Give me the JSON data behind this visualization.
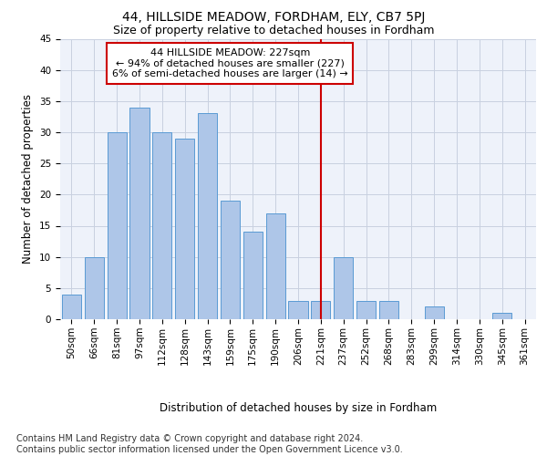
{
  "title": "44, HILLSIDE MEADOW, FORDHAM, ELY, CB7 5PJ",
  "subtitle": "Size of property relative to detached houses in Fordham",
  "xlabel": "Distribution of detached houses by size in Fordham",
  "ylabel": "Number of detached properties",
  "categories": [
    "50sqm",
    "66sqm",
    "81sqm",
    "97sqm",
    "112sqm",
    "128sqm",
    "143sqm",
    "159sqm",
    "175sqm",
    "190sqm",
    "206sqm",
    "221sqm",
    "237sqm",
    "252sqm",
    "268sqm",
    "283sqm",
    "299sqm",
    "314sqm",
    "330sqm",
    "345sqm",
    "361sqm"
  ],
  "values": [
    4,
    10,
    30,
    34,
    30,
    29,
    33,
    19,
    14,
    17,
    3,
    3,
    10,
    3,
    3,
    0,
    2,
    0,
    0,
    1,
    0
  ],
  "bar_color": "#aec6e8",
  "bar_edge_color": "#5a9bd4",
  "vline_x_index": 11,
  "vline_color": "#cc0000",
  "annotation_line1": "44 HILLSIDE MEADOW: 227sqm",
  "annotation_line2": "← 94% of detached houses are smaller (227)",
  "annotation_line3": "6% of semi-detached houses are larger (14) →",
  "annotation_box_color": "#cc0000",
  "ylim": [
    0,
    45
  ],
  "yticks": [
    0,
    5,
    10,
    15,
    20,
    25,
    30,
    35,
    40,
    45
  ],
  "footer_text": "Contains HM Land Registry data © Crown copyright and database right 2024.\nContains public sector information licensed under the Open Government Licence v3.0.",
  "bg_color": "#eef2fa",
  "grid_color": "#c8d0e0",
  "title_fontsize": 10,
  "subtitle_fontsize": 9,
  "axis_label_fontsize": 8.5,
  "tick_fontsize": 7.5,
  "footer_fontsize": 7,
  "annotation_fontsize": 8
}
